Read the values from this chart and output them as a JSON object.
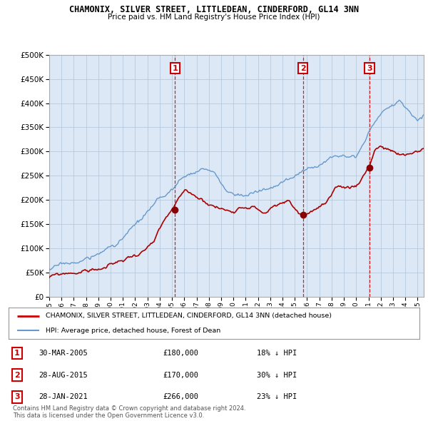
{
  "title": "CHAMONIX, SILVER STREET, LITTLEDEAN, CINDERFORD, GL14 3NN",
  "subtitle": "Price paid vs. HM Land Registry's House Price Index (HPI)",
  "ylim": [
    0,
    500000
  ],
  "yticks": [
    0,
    50000,
    100000,
    150000,
    200000,
    250000,
    300000,
    350000,
    400000,
    450000,
    500000
  ],
  "xstart": 1995.0,
  "xend": 2025.5,
  "sales": [
    {
      "label": "1",
      "year": 2005.24,
      "price": 180000
    },
    {
      "label": "2",
      "year": 2015.66,
      "price": 170000
    },
    {
      "label": "3",
      "year": 2021.08,
      "price": 266000
    }
  ],
  "legend_entries": [
    {
      "label": "CHAMONIX, SILVER STREET, LITTLEDEAN, CINDERFORD, GL14 3NN (detached house)",
      "color": "#cc0000",
      "lw": 2
    },
    {
      "label": "HPI: Average price, detached house, Forest of Dean",
      "color": "#6699cc",
      "lw": 1.5
    }
  ],
  "table_rows": [
    {
      "num": "1",
      "date": "30-MAR-2005",
      "price": "£180,000",
      "hpi": "18% ↓ HPI"
    },
    {
      "num": "2",
      "date": "28-AUG-2015",
      "price": "£170,000",
      "hpi": "30% ↓ HPI"
    },
    {
      "num": "3",
      "date": "28-JAN-2021",
      "price": "£266,000",
      "hpi": "23% ↓ HPI"
    }
  ],
  "footer": "Contains HM Land Registry data © Crown copyright and database right 2024.\nThis data is licensed under the Open Government Licence v3.0.",
  "bg_color": "#dce8f5",
  "grid_color": "#b0c4d8",
  "vline_color": "#cc0000",
  "hpi_color": "#6699cc",
  "sale_color": "#aa0000"
}
